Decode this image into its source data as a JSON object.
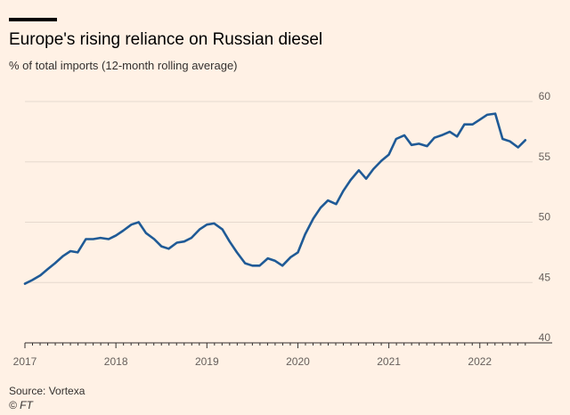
{
  "header": {
    "title": "Europe's rising reliance on Russian diesel",
    "subtitle": "% of total imports (12-month rolling average)"
  },
  "footer": {
    "source": "Source: Vortexa",
    "credit": "© FT"
  },
  "colors": {
    "background": "#fff1e5",
    "line": "#1f5a96",
    "grid": "#e6d9ce",
    "axis": "#33302e",
    "tick_label": "#66605c"
  },
  "chart_data": {
    "type": "line",
    "title": "Europe's rising reliance on Russian diesel",
    "ylabel": "% of total imports (12-month rolling average)",
    "xlim": [
      2017.0,
      2022.58
    ],
    "ylim": [
      40,
      60
    ],
    "x_ticks": [
      2017,
      2018,
      2019,
      2020,
      2021,
      2022
    ],
    "y_ticks": [
      40,
      45,
      50,
      55,
      60
    ],
    "y_axis_side": "right",
    "grid": true,
    "legend": "none",
    "series": [
      {
        "x": [
          2017.0,
          2017.08,
          2017.17,
          2017.25,
          2017.33,
          2017.42,
          2017.5,
          2017.58,
          2017.67,
          2017.75,
          2017.83,
          2017.92,
          2018.0,
          2018.08,
          2018.17,
          2018.25,
          2018.33,
          2018.42,
          2018.5,
          2018.58,
          2018.67,
          2018.75,
          2018.83,
          2018.92,
          2019.0,
          2019.08,
          2019.17,
          2019.25,
          2019.33,
          2019.42,
          2019.5,
          2019.58,
          2019.67,
          2019.75,
          2019.83,
          2019.92,
          2020.0,
          2020.08,
          2020.17,
          2020.25,
          2020.33,
          2020.42,
          2020.5,
          2020.58,
          2020.67,
          2020.75,
          2020.83,
          2020.92,
          2021.0,
          2021.08,
          2021.17,
          2021.25,
          2021.33,
          2021.42,
          2021.5,
          2021.58,
          2021.67,
          2021.75,
          2021.83,
          2021.92,
          2022.0,
          2022.08,
          2022.17,
          2022.25,
          2022.33,
          2022.42,
          2022.5
        ],
        "y": [
          44.9,
          45.2,
          45.6,
          46.1,
          46.6,
          47.2,
          47.6,
          47.5,
          48.6,
          48.6,
          48.7,
          48.6,
          48.9,
          49.3,
          49.8,
          50.0,
          49.1,
          48.6,
          48.0,
          47.8,
          48.3,
          48.4,
          48.7,
          49.4,
          49.8,
          49.9,
          49.4,
          48.4,
          47.5,
          46.6,
          46.4,
          46.4,
          47.0,
          46.8,
          46.4,
          47.1,
          47.5,
          49.0,
          50.3,
          51.2,
          51.8,
          51.5,
          52.6,
          53.5,
          54.3,
          53.6,
          54.4,
          55.1,
          55.6,
          56.9,
          57.2,
          56.4,
          56.5,
          56.3,
          57.0,
          57.2,
          57.5,
          57.1,
          58.1,
          58.1,
          58.5,
          58.9,
          59.0,
          56.9,
          56.7,
          56.2,
          56.8
        ]
      }
    ]
  }
}
